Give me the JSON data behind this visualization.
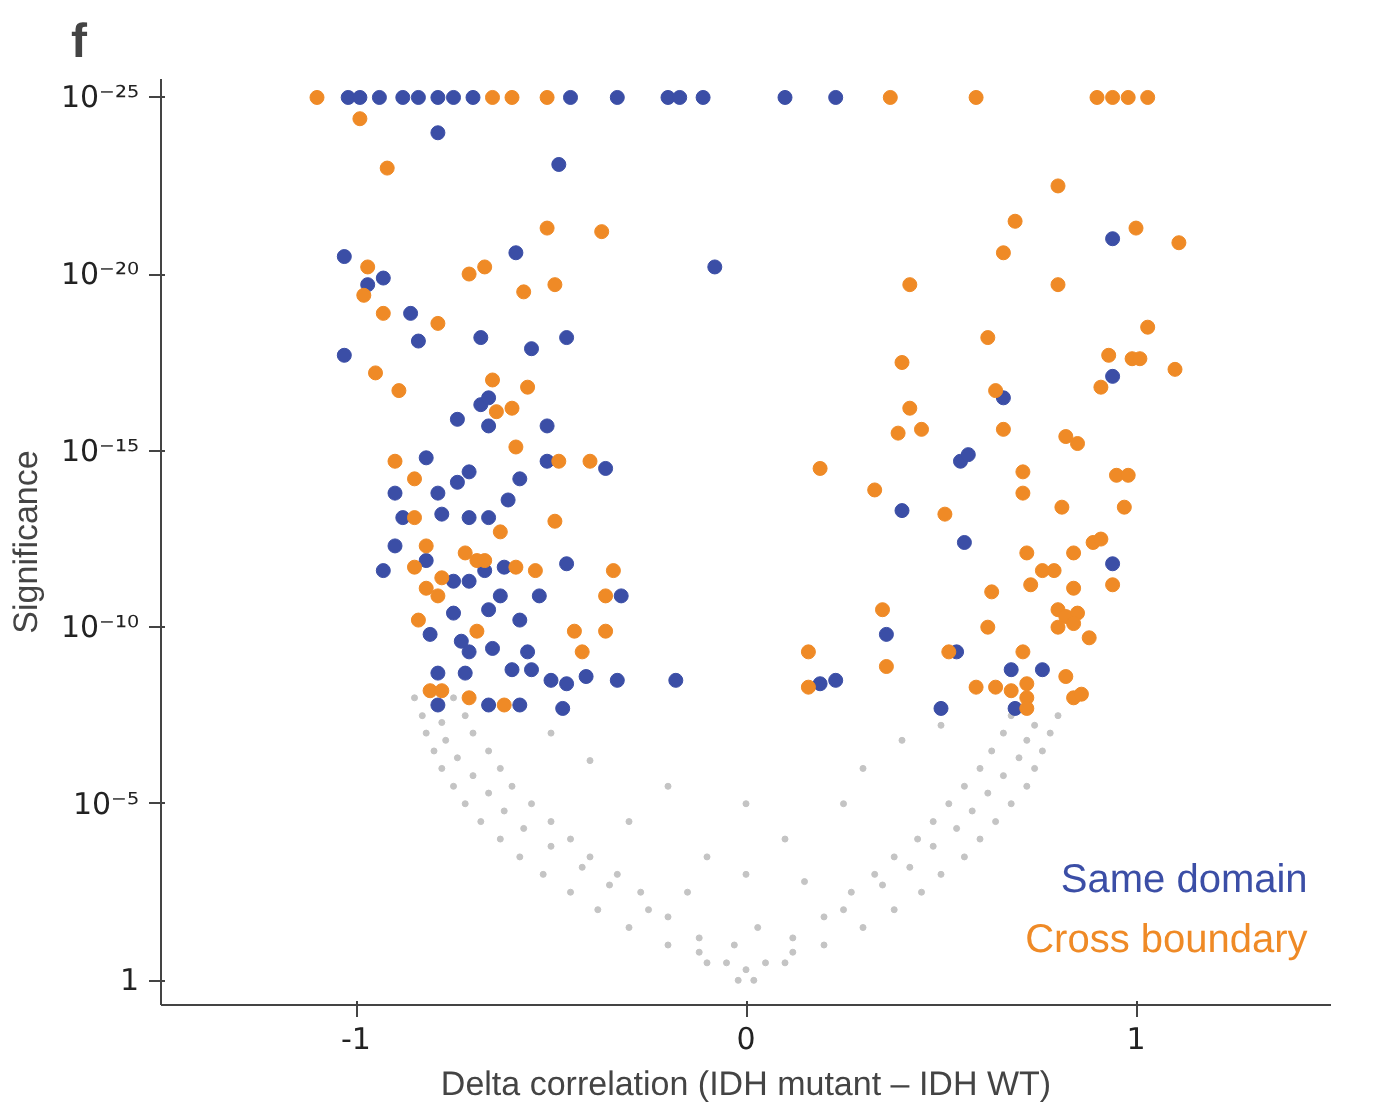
{
  "chart_data": {
    "type": "scatter",
    "title": "f",
    "xlabel": "Delta correlation (IDH mutant – IDH WT)",
    "ylabel": "Significance",
    "log": "y",
    "marker": "circle",
    "legend": "bottom right",
    "xlim": [
      -1.5,
      1.5
    ],
    "ylim": [
      5,
      3e-26
    ],
    "xticks": [
      -1,
      0,
      1
    ],
    "yticks": [
      1,
      {
        "value": 1e-05,
        "label": "10⁻⁵"
      },
      {
        "value": 1e-10,
        "label": "10⁻¹⁰"
      },
      {
        "value": 1e-15,
        "label": "10⁻¹⁵"
      },
      {
        "value": 1e-20,
        "label": "10⁻²⁰"
      },
      {
        "value": 1e-25,
        "label": "10⁻²⁵"
      }
    ],
    "series": [
      {
        "color": "#c4c4c4",
        "x": [
          -0.02,
          -0.1,
          -0.2,
          -0.3,
          -0.38,
          -0.45,
          -0.52,
          -0.58,
          -0.63,
          -0.68,
          -0.72,
          -0.75,
          -0.78,
          -0.8,
          -0.82,
          -0.83,
          -0.85,
          -0.05,
          -0.12,
          -0.2,
          -0.27,
          -0.33,
          -0.4,
          -0.45,
          -0.5,
          -0.55,
          -0.6,
          -0.63,
          -0.66,
          -0.7,
          -0.72,
          -0.75,
          -0.12,
          -0.25,
          -0.35,
          -0.42,
          -0.5,
          -0.57,
          -0.62,
          -0.66,
          -0.7,
          -0.74,
          -0.77,
          -0.78,
          0.02,
          0.1,
          0.2,
          0.3,
          0.38,
          0.45,
          0.5,
          0.56,
          0.6,
          0.64,
          0.68,
          0.72,
          0.74,
          0.76,
          0.78,
          0.8,
          0.05,
          0.12,
          0.2,
          0.27,
          0.33,
          0.38,
          0.44,
          0.48,
          0.52,
          0.56,
          0.6,
          0.63,
          0.66,
          0.68,
          0.12,
          0.25,
          0.35,
          0.42,
          0.48,
          0.54,
          0.58,
          0.62,
          0.66,
          0.7,
          0.72,
          0.74,
          0,
          -0.03,
          0.03,
          -0.15,
          0.15,
          -0.1,
          0.1,
          -0.3,
          0.25,
          -0.2,
          0.3,
          -0.4,
          0.4,
          -0.5,
          0.5,
          0,
          0
        ],
        "values": [
          1,
          0.32,
          0.1,
          0.032,
          0.01,
          0.0032,
          0.001,
          0.00032,
          0.0001,
          3.2e-05,
          1e-05,
          3.2e-06,
          1e-06,
          3.2e-07,
          1e-07,
          3.2e-08,
          1e-08,
          0.32,
          0.063,
          0.016,
          0.0032,
          0.001,
          0.00032,
          0.0001,
          3.2e-05,
          1e-05,
          3.2e-06,
          1e-06,
          3.2e-07,
          1e-07,
          3.2e-08,
          1e-08,
          0.16,
          0.01,
          0.002,
          0.00063,
          0.00016,
          5e-05,
          1.6e-05,
          5e-06,
          1.6e-06,
          5e-07,
          1.6e-07,
          5e-08,
          1,
          0.32,
          0.1,
          0.032,
          0.01,
          0.0032,
          0.001,
          0.00032,
          0.0001,
          3.2e-05,
          1e-05,
          3.2e-06,
          1e-06,
          3.2e-07,
          1e-07,
          3.2e-08,
          0.32,
          0.063,
          0.016,
          0.0032,
          0.001,
          0.00032,
          0.0001,
          3.2e-05,
          1e-05,
          3.2e-06,
          1e-06,
          3.2e-07,
          1e-07,
          3.2e-08,
          0.16,
          0.01,
          0.002,
          0.00063,
          0.00016,
          5e-05,
          1.6e-05,
          5e-06,
          1.6e-06,
          5e-07,
          1.6e-07,
          6e-08,
          0.5,
          0.1,
          0.032,
          0.0032,
          0.0016,
          0.00032,
          0.0001,
          3.2e-05,
          1e-05,
          3.2e-06,
          1e-06,
          6e-07,
          1.6e-07,
          1e-07,
          6e-08,
          0.001,
          1e-05
        ]
      },
      {
        "name": "Same domain",
        "color": "#3b4ea6",
        "x": [
          -1.02,
          -0.99,
          -0.94,
          -0.88,
          -0.84,
          -0.79,
          -0.75,
          -0.7,
          -0.45,
          -0.33,
          -0.2,
          -0.17,
          -0.11,
          0.1,
          0.23,
          -0.79,
          -0.48,
          -1.03,
          -0.59,
          -0.93,
          -0.97,
          -0.86,
          -0.84,
          -0.68,
          -0.55,
          -0.46,
          -1.03,
          -0.68,
          -0.66,
          -0.74,
          -0.66,
          -0.51,
          -0.82,
          -0.71,
          -0.74,
          -0.58,
          -0.51,
          -0.36,
          -0.9,
          -0.79,
          -0.61,
          -0.88,
          -0.71,
          -0.66,
          -0.78,
          -0.9,
          -0.82,
          -0.93,
          -0.62,
          -0.46,
          -0.75,
          -0.71,
          -0.67,
          -0.63,
          -0.53,
          -0.32,
          -0.75,
          -0.66,
          -0.58,
          -0.81,
          -0.73,
          -0.71,
          -0.65,
          -0.56,
          -0.79,
          -0.72,
          -0.6,
          -0.55,
          -0.5,
          -0.46,
          -0.41,
          -0.33,
          -0.18,
          -0.79,
          -0.66,
          -0.58,
          -0.47,
          -0.08,
          0.94,
          0.94,
          0.66,
          0.55,
          0.57,
          0.4,
          0.56,
          0.94,
          0.36,
          0.54,
          0.19,
          0.23,
          0.68,
          0.76,
          0.5,
          0.69
        ],
        "values": [
          1e-25,
          1e-25,
          1e-25,
          1e-25,
          1e-25,
          1e-25,
          1e-25,
          1e-25,
          1e-25,
          1e-25,
          1e-25,
          1e-25,
          1e-25,
          1e-25,
          1e-25,
          1e-24,
          7.9e-24,
          3.2e-21,
          2.5e-21,
          1.3e-20,
          2e-20,
          1.3e-19,
          7.9e-19,
          6.3e-19,
          1.3e-18,
          6.3e-19,
          2e-18,
          5e-17,
          3.2e-17,
          1.3e-16,
          2e-16,
          2e-16,
          1.6e-15,
          4e-15,
          7.9e-15,
          6.3e-15,
          2e-15,
          3.2e-15,
          1.6e-14,
          1.6e-14,
          2.5e-14,
          7.9e-14,
          7.9e-14,
          7.9e-14,
          6.3e-14,
          5e-13,
          1.3e-12,
          2.5e-12,
          2e-12,
          1.6e-12,
          5e-12,
          5e-12,
          2.5e-12,
          1.3e-11,
          1.3e-11,
          1.3e-11,
          4e-11,
          3.2e-11,
          6.3e-11,
          1.6e-10,
          2.5e-10,
          5e-10,
          4e-10,
          5e-10,
          2e-09,
          2e-09,
          1.6e-09,
          1.6e-09,
          3.2e-09,
          4e-09,
          2.5e-09,
          3.2e-09,
          3.2e-09,
          1.6e-08,
          1.6e-08,
          1.6e-08,
          2e-08,
          6.3e-21,
          1e-21,
          7.9e-18,
          3.2e-17,
          2e-15,
          1.3e-15,
          5e-14,
          4e-13,
          1.6e-12,
          1.6e-10,
          5e-10,
          4e-09,
          3.2e-09,
          1.6e-09,
          1.6e-09,
          2e-08,
          2e-08
        ]
      },
      {
        "name": "Cross boundary",
        "color": "#ef8a26",
        "x": [
          -1.1,
          -0.65,
          -0.6,
          -0.51,
          0.37,
          0.59,
          0.9,
          0.94,
          0.98,
          1.03,
          -0.99,
          -0.92,
          -0.51,
          -0.37,
          -0.97,
          -0.71,
          -0.67,
          -0.57,
          -0.49,
          -0.98,
          -0.93,
          -0.79,
          -0.95,
          -0.89,
          -0.65,
          -0.56,
          -0.6,
          -0.64,
          -0.59,
          -0.9,
          -0.85,
          -0.48,
          -0.4,
          -0.49,
          -0.85,
          -0.63,
          -0.82,
          -0.72,
          -0.69,
          -0.67,
          -0.85,
          -0.54,
          -0.34,
          -0.59,
          -0.78,
          -0.82,
          -0.79,
          -0.36,
          -0.84,
          -0.69,
          -0.44,
          -0.36,
          -0.42,
          -0.81,
          -0.78,
          -0.71,
          -0.62,
          0.8,
          0.69,
          1.0,
          1.11,
          0.66,
          0.42,
          0.8,
          1.03,
          0.62,
          0.4,
          0.93,
          0.99,
          1.01,
          1.1,
          0.91,
          0.64,
          0.42,
          0.39,
          0.45,
          0.66,
          0.82,
          0.85,
          0.19,
          0.33,
          0.71,
          0.71,
          0.95,
          0.98,
          0.51,
          0.81,
          0.97,
          0.72,
          0.84,
          0.89,
          0.91,
          0.73,
          0.76,
          0.79,
          0.84,
          0.94,
          0.63,
          0.35,
          0.8,
          0.82,
          0.85,
          0.8,
          0.84,
          0.62,
          0.88,
          0.16,
          0.36,
          0.52,
          0.71,
          0.16,
          0.59,
          0.64,
          0.68,
          0.72,
          0.72,
          0.82,
          0.84,
          0.86,
          0.72
        ],
        "values": [
          1e-25,
          1e-25,
          1e-25,
          1e-25,
          1e-25,
          1e-25,
          1e-25,
          1e-25,
          1e-25,
          1e-25,
          4e-25,
          1e-23,
          5e-22,
          6.3e-22,
          6.3e-21,
          1e-20,
          6.3e-21,
          3.2e-20,
          2e-20,
          4e-20,
          1.3e-19,
          2.5e-19,
          6.3e-18,
          2e-17,
          1e-17,
          1.6e-17,
          6.3e-17,
          7.9e-17,
          7.9e-16,
          2e-15,
          6.3e-15,
          2e-15,
          2e-15,
          1e-13,
          7.9e-14,
          2e-13,
          5e-13,
          7.9e-13,
          1.3e-12,
          1.3e-12,
          2e-12,
          2.5e-12,
          2.5e-12,
          2e-12,
          4e-12,
          7.9e-12,
          1.3e-11,
          1.3e-11,
          6.3e-11,
          1.3e-10,
          1.3e-10,
          1.3e-10,
          5e-10,
          6.3e-09,
          6.3e-09,
          1e-08,
          1.6e-08,
          3.2e-23,
          3.2e-22,
          5e-22,
          1.3e-21,
          2.5e-21,
          2e-20,
          2e-20,
          3.2e-19,
          6.3e-19,
          3.2e-18,
          2e-18,
          2.5e-18,
          2.5e-18,
          5e-18,
          1.6e-17,
          2e-17,
          6.3e-17,
          3.2e-16,
          2.5e-16,
          2.5e-16,
          4e-16,
          6.3e-16,
          3.2e-15,
          1.3e-14,
          4e-15,
          1.6e-14,
          5e-15,
          5e-15,
          6.3e-14,
          4e-14,
          4e-14,
          7.9e-13,
          7.9e-13,
          4e-13,
          3.2e-13,
          6.3e-12,
          2.5e-12,
          2.5e-12,
          7.9e-12,
          6.3e-12,
          1e-11,
          3.2e-11,
          3.2e-11,
          5e-11,
          4e-11,
          1e-10,
          7.9e-11,
          1e-10,
          2e-10,
          5e-10,
          1.3e-09,
          5e-10,
          5e-10,
          5e-09,
          5e-09,
          5e-09,
          6.3e-09,
          4e-09,
          1e-08,
          2.5e-09,
          1e-08,
          7.9e-09,
          2e-08
        ]
      }
    ]
  }
}
